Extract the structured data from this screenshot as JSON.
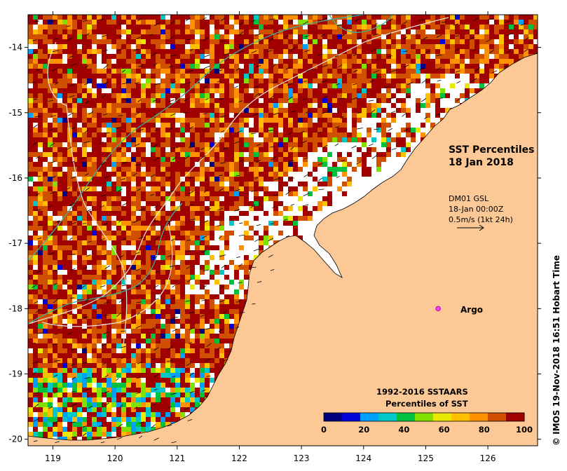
{
  "map": {
    "title_line1": "SST Percentiles",
    "title_line2": "18 Jan 2018",
    "lon_min": 118.6,
    "lon_max": 126.8,
    "lat_min": -20.1,
    "lat_max": -13.5,
    "x_ticks": [
      "119",
      "120",
      "121",
      "122",
      "123",
      "124",
      "125",
      "126"
    ],
    "x_tick_values": [
      119,
      120,
      121,
      122,
      123,
      124,
      125,
      126
    ],
    "y_ticks": [
      "-14",
      "-15",
      "-16",
      "-17",
      "-18",
      "-19",
      "-20"
    ],
    "y_tick_values": [
      -14,
      -15,
      -16,
      -17,
      -18,
      -19,
      -20
    ]
  },
  "wind_note": {
    "line1": "DM01 GSL",
    "line2": "18-Jan 00:00Z",
    "line3": "0.5m/s (1kt 24h)"
  },
  "argo": {
    "label": "Argo",
    "lon": 125.2,
    "lat": -18.0
  },
  "legend": {
    "title_line1": "1992-2016 SSTAARS",
    "title_line2": "Percentiles of SST",
    "ticks": [
      "0",
      "20",
      "40",
      "60",
      "80",
      "100"
    ],
    "colors": [
      "#00007f",
      "#0000d8",
      "#00a0ff",
      "#00c8c8",
      "#00c040",
      "#80e000",
      "#e8e800",
      "#ffc000",
      "#ff9000",
      "#d05000",
      "#a00000"
    ]
  },
  "credit": "© IMOS 19-Nov-2018 16:51 Hobart Time",
  "colors": {
    "land": "#fcc996",
    "sea_nodata": "#ffffff"
  }
}
